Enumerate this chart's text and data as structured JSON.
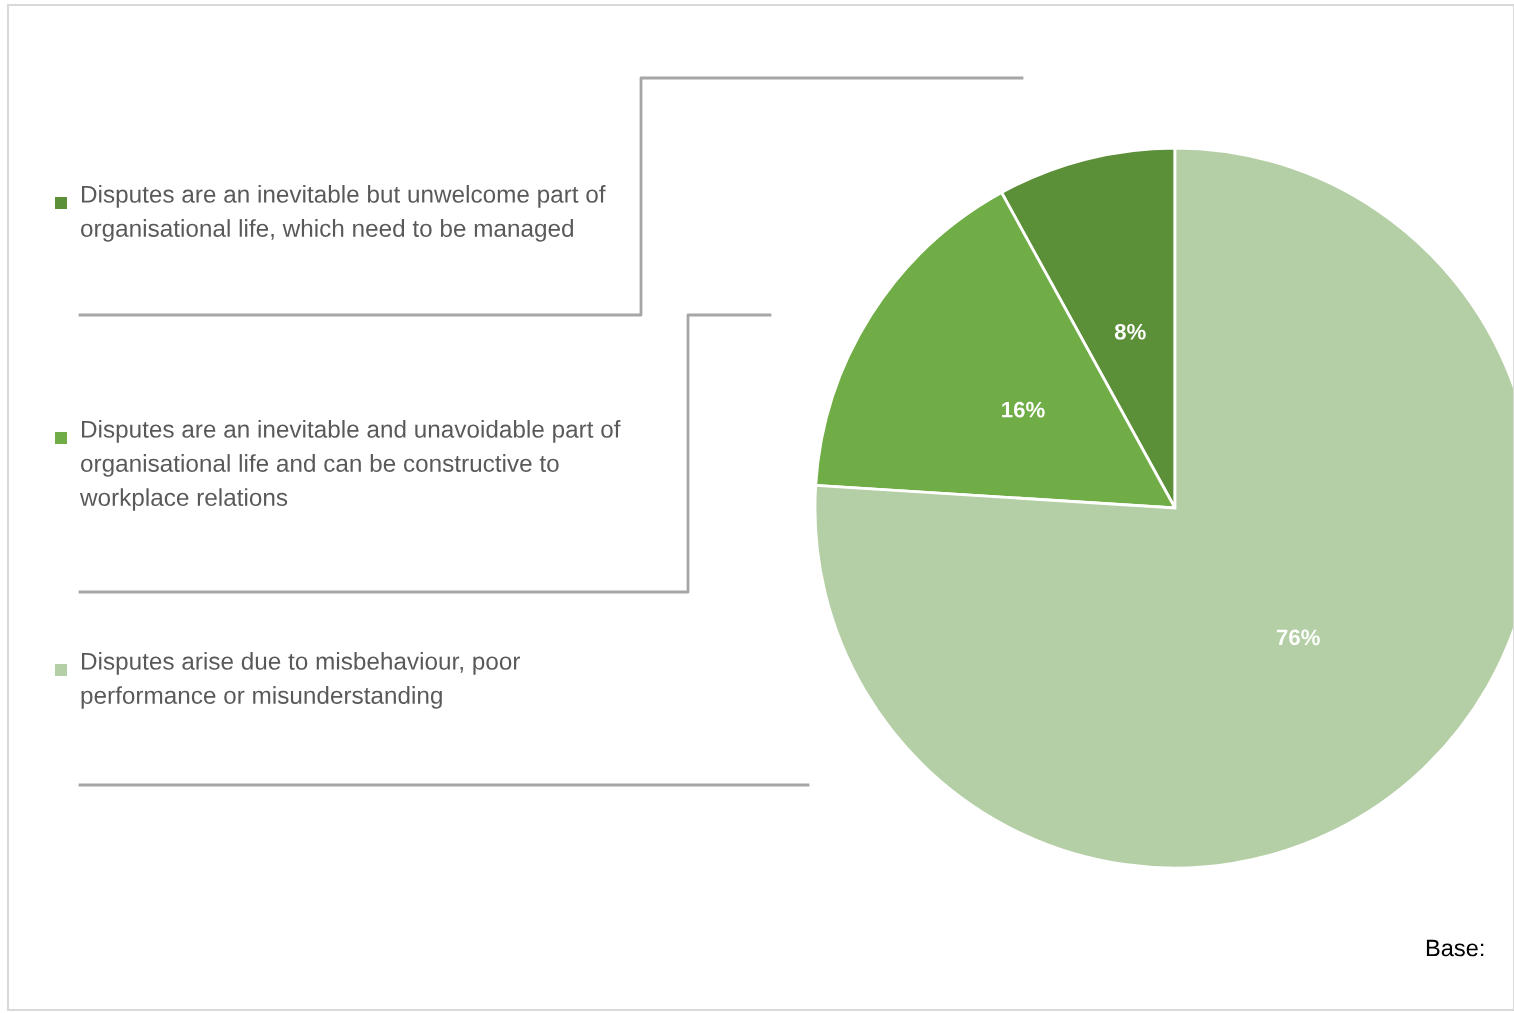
{
  "chart_data": {
    "type": "pie",
    "categories": [
      "Disputes are an inevitable but unwelcome part of organisational life, which need to be managed",
      "Disputes are an inevitable and unavoidable part of organisational life and can be constructive to workplace relations",
      "Disputes arise due to misbehaviour, poor performance or misunderstanding"
    ],
    "values": [
      8,
      16,
      76
    ],
    "colors": [
      "#5b8f38",
      "#70ad47",
      "#b4cfa6"
    ],
    "value_labels": [
      "8%",
      "16%",
      "76%"
    ],
    "legend": "left",
    "annotations": [
      "Base:"
    ]
  }
}
